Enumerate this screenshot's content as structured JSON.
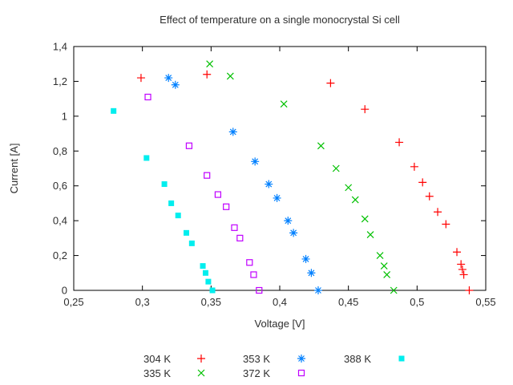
{
  "chart_data": {
    "type": "scatter",
    "title": "Effect of temperature on a single monocrystal Si cell",
    "xlabel": "Voltage [V]",
    "ylabel": "Current [A]",
    "xlim": [
      0.25,
      0.55
    ],
    "ylim": [
      0,
      1.4
    ],
    "xticks": [
      0.25,
      0.3,
      0.35,
      0.4,
      0.45,
      0.5,
      0.55
    ],
    "xtick_labels": [
      "0,25",
      "0,3",
      "0,35",
      "0,4",
      "0,45",
      "0,5",
      "0,55"
    ],
    "yticks": [
      0,
      0.2,
      0.4,
      0.6,
      0.8,
      1.0,
      1.2,
      1.4
    ],
    "ytick_labels": [
      "0",
      "0,2",
      "0,4",
      "0,6",
      "0,8",
      "1",
      "1,2",
      "1,4"
    ],
    "grid": false,
    "legend_position": "below-plot",
    "series": [
      {
        "name": "304 K",
        "color": "#ff0000",
        "marker": "plus",
        "points": [
          [
            0.299,
            1.22
          ],
          [
            0.347,
            1.24
          ],
          [
            0.437,
            1.19
          ],
          [
            0.462,
            1.04
          ],
          [
            0.487,
            0.85
          ],
          [
            0.498,
            0.71
          ],
          [
            0.504,
            0.62
          ],
          [
            0.509,
            0.54
          ],
          [
            0.515,
            0.45
          ],
          [
            0.521,
            0.38
          ],
          [
            0.529,
            0.22
          ],
          [
            0.532,
            0.15
          ],
          [
            0.533,
            0.12
          ],
          [
            0.534,
            0.09
          ],
          [
            0.538,
            0.0
          ]
        ]
      },
      {
        "name": "335 K",
        "color": "#00c000",
        "marker": "cross",
        "points": [
          [
            0.349,
            1.3
          ],
          [
            0.364,
            1.23
          ],
          [
            0.403,
            1.07
          ],
          [
            0.43,
            0.83
          ],
          [
            0.441,
            0.7
          ],
          [
            0.45,
            0.59
          ],
          [
            0.455,
            0.52
          ],
          [
            0.462,
            0.41
          ],
          [
            0.466,
            0.32
          ],
          [
            0.473,
            0.2
          ],
          [
            0.476,
            0.14
          ],
          [
            0.478,
            0.09
          ],
          [
            0.483,
            0.0
          ]
        ]
      },
      {
        "name": "353 K",
        "color": "#0080ff",
        "marker": "star",
        "points": [
          [
            0.319,
            1.22
          ],
          [
            0.324,
            1.18
          ],
          [
            0.366,
            0.91
          ],
          [
            0.382,
            0.74
          ],
          [
            0.392,
            0.61
          ],
          [
            0.398,
            0.53
          ],
          [
            0.406,
            0.4
          ],
          [
            0.41,
            0.33
          ],
          [
            0.419,
            0.18
          ],
          [
            0.423,
            0.1
          ],
          [
            0.428,
            0.0
          ]
        ]
      },
      {
        "name": "372 K",
        "color": "#c000ff",
        "marker": "open-square",
        "points": [
          [
            0.304,
            1.11
          ],
          [
            0.334,
            0.83
          ],
          [
            0.347,
            0.66
          ],
          [
            0.355,
            0.55
          ],
          [
            0.361,
            0.48
          ],
          [
            0.367,
            0.36
          ],
          [
            0.371,
            0.3
          ],
          [
            0.378,
            0.16
          ],
          [
            0.381,
            0.09
          ],
          [
            0.385,
            0.0
          ]
        ]
      },
      {
        "name": "388 K",
        "color": "#00eeee",
        "marker": "filled-square",
        "points": [
          [
            0.279,
            1.03
          ],
          [
            0.303,
            0.76
          ],
          [
            0.316,
            0.61
          ],
          [
            0.321,
            0.5
          ],
          [
            0.326,
            0.43
          ],
          [
            0.332,
            0.33
          ],
          [
            0.336,
            0.27
          ],
          [
            0.344,
            0.14
          ],
          [
            0.346,
            0.1
          ],
          [
            0.348,
            0.05
          ],
          [
            0.351,
            0.0
          ]
        ]
      }
    ],
    "legend": {
      "columns": [
        [
          "304 K",
          "335 K"
        ],
        [
          "353 K",
          "372 K"
        ],
        [
          "388 K"
        ]
      ]
    }
  }
}
